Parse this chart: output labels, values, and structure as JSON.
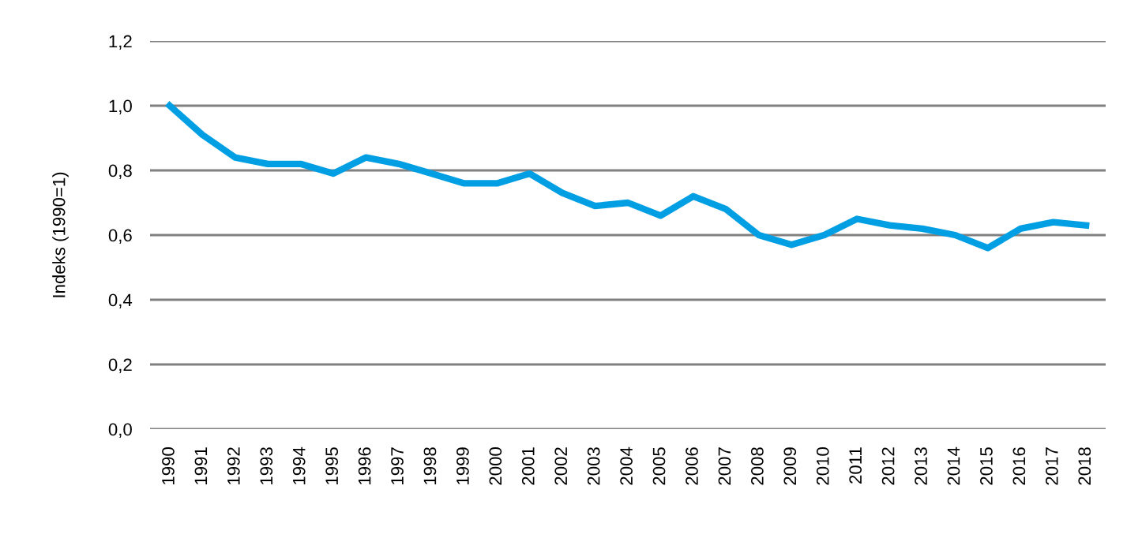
{
  "chart_data": {
    "type": "line",
    "ylabel": "Indeks (1990=1)",
    "categories": [
      "1990",
      "1991",
      "1992",
      "1993",
      "1994",
      "1995",
      "1996",
      "1997",
      "1998",
      "1999",
      "2000",
      "2001",
      "2002",
      "2003",
      "2004",
      "2005",
      "2006",
      "2007",
      "2008",
      "2009",
      "2010",
      "2011",
      "2012",
      "2013",
      "2014",
      "2015",
      "2016",
      "2017",
      "2018"
    ],
    "series": [
      {
        "color": "#009fe3",
        "values": [
          1.0,
          0.91,
          0.84,
          0.82,
          0.82,
          0.79,
          0.84,
          0.82,
          0.79,
          0.76,
          0.76,
          0.79,
          0.73,
          0.69,
          0.7,
          0.66,
          0.72,
          0.68,
          0.6,
          0.57,
          0.6,
          0.65,
          0.63,
          0.62,
          0.6,
          0.56,
          0.62,
          0.64,
          0.63
        ]
      }
    ],
    "ylim": [
      0,
      1.2
    ],
    "yticks": [
      {
        "value": 0,
        "label": "0,0"
      },
      {
        "value": 0.2,
        "label": "0,2"
      },
      {
        "value": 0.4,
        "label": "0,4"
      },
      {
        "value": 0.6,
        "label": "0,6"
      },
      {
        "value": 0.8,
        "label": "0,8"
      },
      {
        "value": 1.0,
        "label": "1,0"
      },
      {
        "value": 1.2,
        "label": "1,2"
      }
    ],
    "grid": "y",
    "legend": false,
    "marker": "none",
    "line_style": "solid"
  }
}
